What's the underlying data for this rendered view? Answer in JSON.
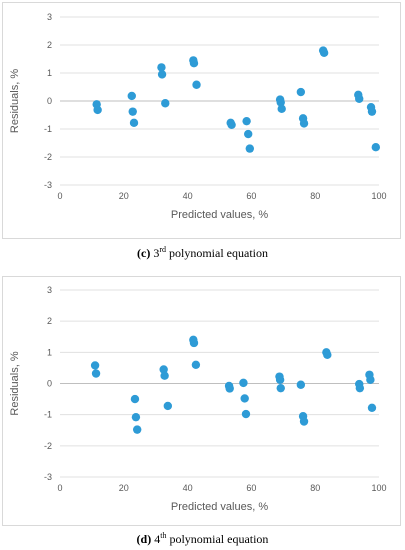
{
  "chart_data": [
    {
      "type": "scatter",
      "xlabel": "Predicted values, %",
      "ylabel": "Residuals, %",
      "xlim": [
        0,
        100
      ],
      "ylim": [
        -3,
        3
      ],
      "xticks": [
        0,
        20,
        40,
        60,
        80,
        100
      ],
      "yticks": [
        3,
        2,
        1,
        0,
        -1,
        -2,
        -3
      ],
      "grid": "horizontal",
      "marker_color": "#2E9BD6",
      "caption": {
        "letter": "(c)",
        "ord": "3",
        "sup": "rd",
        "rest": " polynomial equation"
      },
      "points": [
        {
          "x": 11.5,
          "y": -0.12
        },
        {
          "x": 11.8,
          "y": -0.32
        },
        {
          "x": 22.5,
          "y": 0.18
        },
        {
          "x": 22.8,
          "y": -0.38
        },
        {
          "x": 23.2,
          "y": -0.78
        },
        {
          "x": 31.8,
          "y": 1.2
        },
        {
          "x": 32.0,
          "y": 0.95
        },
        {
          "x": 33.0,
          "y": -0.08
        },
        {
          "x": 41.8,
          "y": 1.45
        },
        {
          "x": 42.0,
          "y": 1.35
        },
        {
          "x": 42.8,
          "y": 0.58
        },
        {
          "x": 53.5,
          "y": -0.78
        },
        {
          "x": 53.8,
          "y": -0.85
        },
        {
          "x": 58.5,
          "y": -0.72
        },
        {
          "x": 59.0,
          "y": -1.18
        },
        {
          "x": 59.5,
          "y": -1.7
        },
        {
          "x": 69.0,
          "y": 0.05
        },
        {
          "x": 69.2,
          "y": -0.05
        },
        {
          "x": 69.5,
          "y": -0.28
        },
        {
          "x": 75.5,
          "y": 0.32
        },
        {
          "x": 76.2,
          "y": -0.62
        },
        {
          "x": 76.5,
          "y": -0.8
        },
        {
          "x": 82.5,
          "y": 1.8
        },
        {
          "x": 82.8,
          "y": 1.72
        },
        {
          "x": 93.5,
          "y": 0.22
        },
        {
          "x": 93.8,
          "y": 0.08
        },
        {
          "x": 97.5,
          "y": -0.22
        },
        {
          "x": 97.8,
          "y": -0.38
        },
        {
          "x": 99.0,
          "y": -1.65
        }
      ]
    },
    {
      "type": "scatter",
      "xlabel": "Predicted values, %",
      "ylabel": "Residuals, %",
      "xlim": [
        0,
        100
      ],
      "ylim": [
        -3,
        3
      ],
      "xticks": [
        0,
        20,
        40,
        60,
        80,
        100
      ],
      "yticks": [
        3,
        2,
        1,
        0,
        -1,
        -2,
        -3
      ],
      "grid": "horizontal",
      "marker_color": "#2E9BD6",
      "caption": {
        "letter": "(d)",
        "ord": "4",
        "sup": "th",
        "rest": " polynomial equation"
      },
      "points": [
        {
          "x": 11.0,
          "y": 0.58
        },
        {
          "x": 11.3,
          "y": 0.32
        },
        {
          "x": 23.5,
          "y": -0.5
        },
        {
          "x": 23.8,
          "y": -1.08
        },
        {
          "x": 24.2,
          "y": -1.48
        },
        {
          "x": 32.5,
          "y": 0.45
        },
        {
          "x": 32.8,
          "y": 0.25
        },
        {
          "x": 33.8,
          "y": -0.72
        },
        {
          "x": 41.8,
          "y": 1.4
        },
        {
          "x": 42.0,
          "y": 1.3
        },
        {
          "x": 42.6,
          "y": 0.6
        },
        {
          "x": 53.0,
          "y": -0.08
        },
        {
          "x": 53.2,
          "y": -0.16
        },
        {
          "x": 57.5,
          "y": 0.02
        },
        {
          "x": 57.9,
          "y": -0.48
        },
        {
          "x": 58.3,
          "y": -0.98
        },
        {
          "x": 68.8,
          "y": 0.22
        },
        {
          "x": 69.0,
          "y": 0.12
        },
        {
          "x": 69.2,
          "y": -0.15
        },
        {
          "x": 75.5,
          "y": -0.04
        },
        {
          "x": 76.2,
          "y": -1.05
        },
        {
          "x": 76.5,
          "y": -1.22
        },
        {
          "x": 83.5,
          "y": 1.0
        },
        {
          "x": 83.8,
          "y": 0.92
        },
        {
          "x": 93.8,
          "y": -0.02
        },
        {
          "x": 94.0,
          "y": -0.15
        },
        {
          "x": 97.0,
          "y": 0.28
        },
        {
          "x": 97.3,
          "y": 0.12
        },
        {
          "x": 97.8,
          "y": -0.78
        }
      ]
    }
  ]
}
